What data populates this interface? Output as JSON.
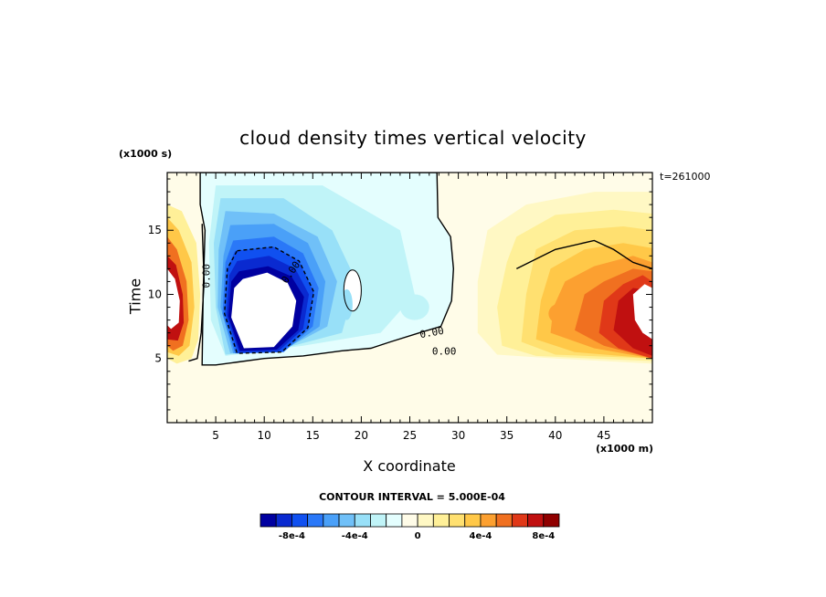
{
  "chart_data": {
    "type": "heatmap",
    "title": "cloud density times vertical velocity",
    "xlabel": "X coordinate",
    "ylabel": "Time",
    "x_unit": "(x1000 m)",
    "y_unit": "(x1000 s)",
    "time_label": "t=261000",
    "xlim": [
      0,
      50
    ],
    "ylim": [
      0,
      19.5
    ],
    "x_ticks": [
      5,
      10,
      15,
      20,
      25,
      30,
      35,
      40,
      45
    ],
    "y_ticks": [
      5,
      10,
      15
    ],
    "contour_interval_text": "CONTOUR INTERVAL = 5.000E-04",
    "contour_line_label": "0.00",
    "colorbar": {
      "levels": [
        -0.0009,
        -0.0008,
        -0.0007,
        -0.0006,
        -0.0005,
        -0.0004,
        -0.0003,
        -0.0002,
        -0.0001,
        0,
        0.0001,
        0.0002,
        0.0003,
        0.0004,
        0.0005,
        0.0006,
        0.0007,
        0.0008
      ],
      "colors": [
        "#0000a0",
        "#0a2ad0",
        "#1050f0",
        "#2a78f8",
        "#4aa0f8",
        "#70c0f8",
        "#98e0f8",
        "#c0f4f8",
        "#e4fefe",
        "#fffce8",
        "#fff8c4",
        "#fff098",
        "#ffe070",
        "#ffc848",
        "#fca030",
        "#f07020",
        "#e03818",
        "#c01010",
        "#900000"
      ],
      "tick_labels": [
        "-8e-4",
        "-4e-4",
        "0",
        "4e-4",
        "8e-4"
      ],
      "tick_values": [
        -0.0008,
        -0.0004,
        0,
        0.0004,
        0.0008
      ]
    },
    "features": [
      {
        "name": "zero contour region (negative)",
        "x_range": [
          3.5,
          29.5
        ],
        "y_range": [
          4.5,
          19.5
        ]
      },
      {
        "name": "strong negative core",
        "x_center": 10.5,
        "y_center": 8.3,
        "value": -0.0009
      },
      {
        "name": "left positive edge",
        "x_range": [
          0,
          3.5
        ],
        "y_range": [
          5,
          17
        ],
        "value": 0.0009
      },
      {
        "name": "right positive region",
        "x_range": [
          32,
          50
        ],
        "y_range": [
          4.5,
          18
        ],
        "value": 0.0009
      }
    ]
  }
}
